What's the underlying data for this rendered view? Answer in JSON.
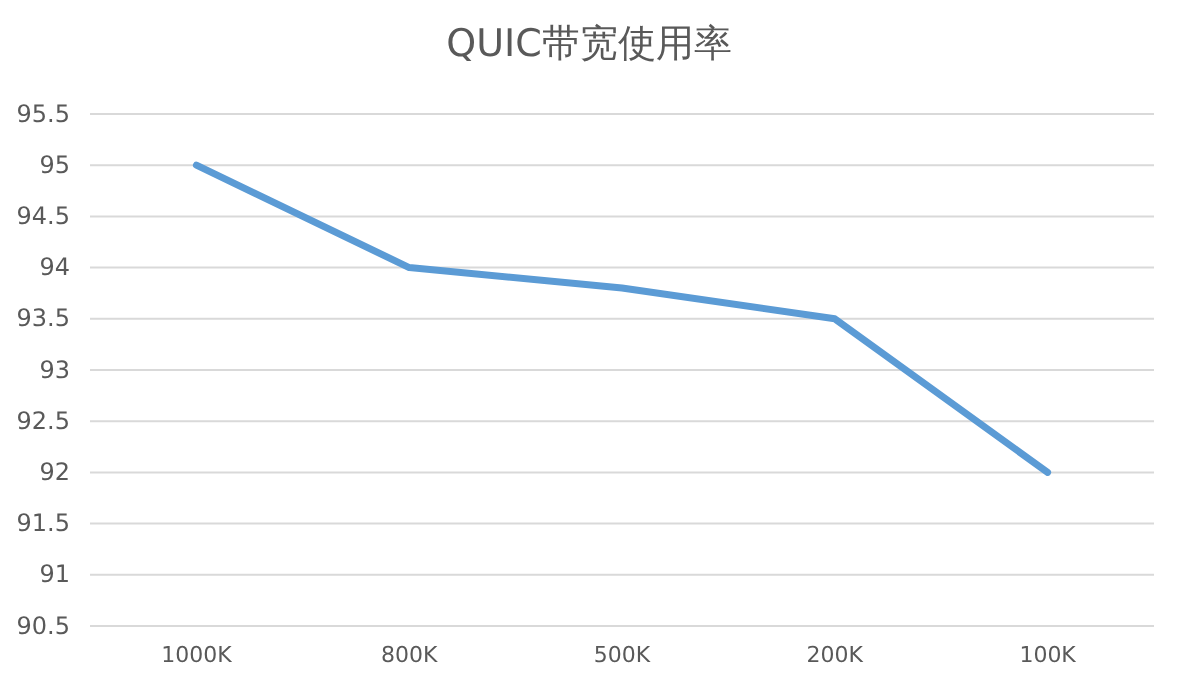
{
  "chart_data": {
    "type": "line",
    "title": "QUIC带宽使用率",
    "categories": [
      "1000K",
      "800K",
      "500K",
      "200K",
      "100K"
    ],
    "series": [
      {
        "color": "#5b9bd5",
        "values": [
          95,
          94,
          93.8,
          93.5,
          92
        ]
      }
    ],
    "ylim": [
      90.5,
      95.5
    ],
    "yticks": [
      90.5,
      91,
      91.5,
      92,
      92.5,
      93,
      93.5,
      94,
      94.5,
      95,
      95.5
    ],
    "grid": "y",
    "marker": "none",
    "line_style": "solid"
  }
}
